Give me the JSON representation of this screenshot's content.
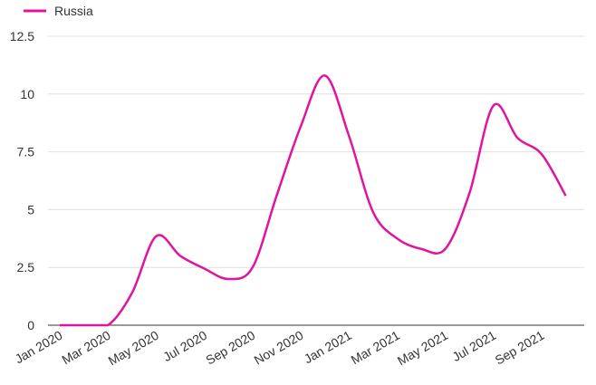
{
  "chart_data": {
    "type": "line",
    "title": "",
    "xlabel": "",
    "ylabel": "",
    "ylim": [
      0,
      12.5
    ],
    "yticks": [
      "0",
      "2.5",
      "5",
      "7.5",
      "10",
      "12.5"
    ],
    "ytick_values": [
      0,
      2.5,
      5,
      7.5,
      10,
      12.5
    ],
    "xtick_labels": [
      "Jan 2020",
      "Mar 2020",
      "May 2020",
      "Jul 2020",
      "Sep 2020",
      "Nov 2020",
      "Jan 2021",
      "Mar 2021",
      "May 2021",
      "Jul 2021",
      "Sep 2021"
    ],
    "grid": true,
    "legend_position": "top-left",
    "x": [
      "Jan 2020",
      "Feb 2020",
      "Mar 2020",
      "Apr 2020",
      "May 2020",
      "Jun 2020",
      "Jul 2020",
      "Aug 2020",
      "Sep 2020",
      "Oct 2020",
      "Nov 2020",
      "Dec 2020",
      "Jan 2021",
      "Feb 2021",
      "Mar 2021",
      "Apr 2021",
      "May 2021",
      "Jun 2021",
      "Jul 2021",
      "Aug 2021",
      "Sep 2021",
      "Oct 2021"
    ],
    "series": [
      {
        "name": "Russia",
        "color": "#e0149e",
        "values": [
          0,
          0,
          0,
          1.4,
          3.85,
          3.0,
          2.45,
          2.0,
          2.5,
          5.6,
          8.6,
          10.8,
          8.2,
          4.9,
          3.75,
          3.3,
          3.3,
          5.7,
          9.5,
          8.1,
          7.4,
          5.6
        ]
      }
    ]
  }
}
